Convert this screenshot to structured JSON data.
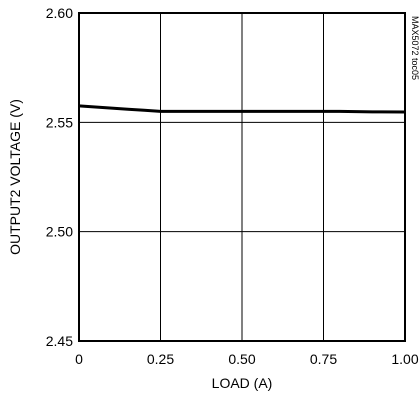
{
  "chart_data": {
    "type": "line",
    "title": "",
    "xlabel": "LOAD (A)",
    "ylabel": "OUTPUT2 VOLTAGE (V)",
    "xlim": [
      0,
      1.0
    ],
    "ylim": [
      2.45,
      2.6
    ],
    "x_ticks": [
      0,
      0.25,
      0.5,
      0.75,
      1.0
    ],
    "x_tick_labels": [
      "0",
      "0.25",
      "0.50",
      "0.75",
      "1.00"
    ],
    "y_ticks": [
      2.45,
      2.5,
      2.55,
      2.6
    ],
    "y_tick_labels": [
      "2.45",
      "2.50",
      "2.55",
      "2.60"
    ],
    "grid": true,
    "series": [
      {
        "x": [
          0,
          0.05,
          0.1,
          0.15,
          0.2,
          0.25,
          0.3,
          0.4,
          0.5,
          0.6,
          0.7,
          0.75,
          0.8,
          0.9,
          1.0
        ],
        "y": [
          2.5575,
          2.557,
          2.5565,
          2.556,
          2.5555,
          2.555,
          2.555,
          2.555,
          2.555,
          2.555,
          2.555,
          2.555,
          2.555,
          2.5548,
          2.5547
        ]
      }
    ],
    "side_note": "MAX5072 toc05",
    "line_color": "#000000"
  }
}
